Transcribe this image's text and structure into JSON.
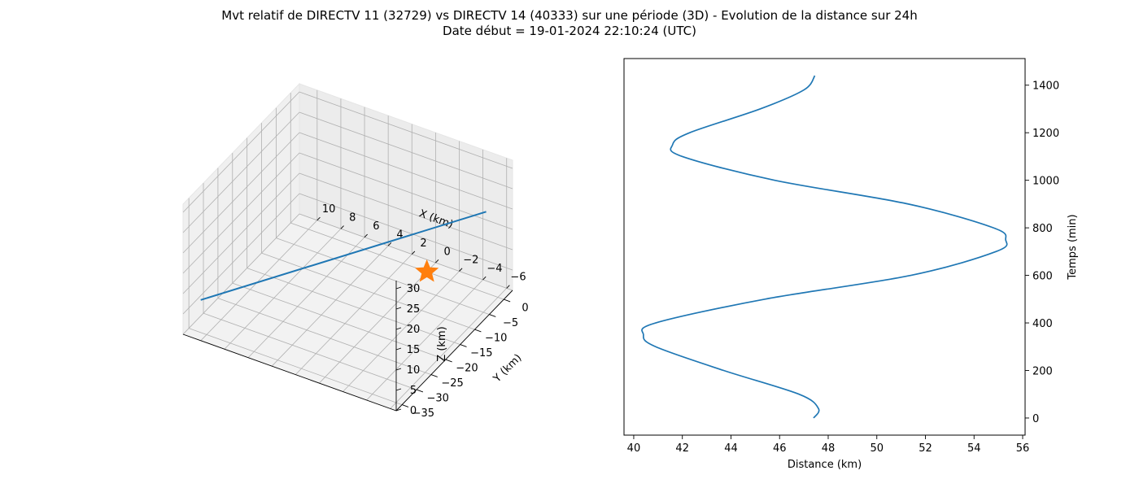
{
  "title": {
    "line1": "Mvt relatif de DIRECTV 11 (32729) vs DIRECTV 14 (40333) sur une période (3D) - Evolution de la distance sur 24h",
    "line2": "Date début = 19-01-2024 22:10:24 (UTC)"
  },
  "colors": {
    "series": "#1f77b4",
    "marker": "#ff7f0e",
    "grid": "#b0b0b0",
    "pane": "#f2f2f2"
  },
  "chart_data": [
    {
      "type": "line",
      "projection": "3d",
      "xlabel": "X (km)",
      "ylabel": "Y (km)",
      "zlabel": "Z (km)",
      "xlim": [
        -6.5,
        11.5
      ],
      "ylim": [
        -37,
        3
      ],
      "zlim": [
        0,
        32
      ],
      "x_ticks": [
        -6,
        -4,
        -2,
        0,
        2,
        4,
        6,
        8,
        10
      ],
      "y_ticks": [
        0,
        -5,
        -10,
        -15,
        -20,
        -25,
        -30,
        -35
      ],
      "z_ticks": [
        0,
        5,
        10,
        15,
        20,
        25,
        30
      ],
      "grid": true,
      "series": [
        {
          "kind": "line",
          "start": {
            "x": -5.5,
            "y": -2,
            "z": 22
          },
          "end": {
            "x": 10.5,
            "y": -35,
            "z": 8
          }
        }
      ],
      "marker": {
        "symbol": "star",
        "x": 0,
        "y": 0,
        "z": 0
      }
    },
    {
      "type": "line",
      "xlabel": "Distance (km)",
      "ylabel": "Temps (min)",
      "xlim": [
        39.6,
        56.1
      ],
      "ylim": [
        -72,
        1512
      ],
      "x_ticks": [
        40,
        42,
        44,
        46,
        48,
        50,
        52,
        54,
        56
      ],
      "y_ticks": [
        0,
        200,
        400,
        600,
        800,
        1000,
        1200,
        1400
      ],
      "grid": false,
      "y_axis_position": "right",
      "series": [
        {
          "t": [
            0,
            40,
            100,
            200,
            300,
            350,
            400,
            500,
            600,
            700,
            750,
            800,
            900,
            1000,
            1100,
            1150,
            1200,
            1300,
            1380,
            1440
          ],
          "distance": [
            47.4,
            47.6,
            46.8,
            43.7,
            40.9,
            40.4,
            40.9,
            45.4,
            51.4,
            54.9,
            55.3,
            54.8,
            51.3,
            45.8,
            42.0,
            41.6,
            42.3,
            45.2,
            47.0,
            47.45
          ]
        }
      ]
    }
  ]
}
